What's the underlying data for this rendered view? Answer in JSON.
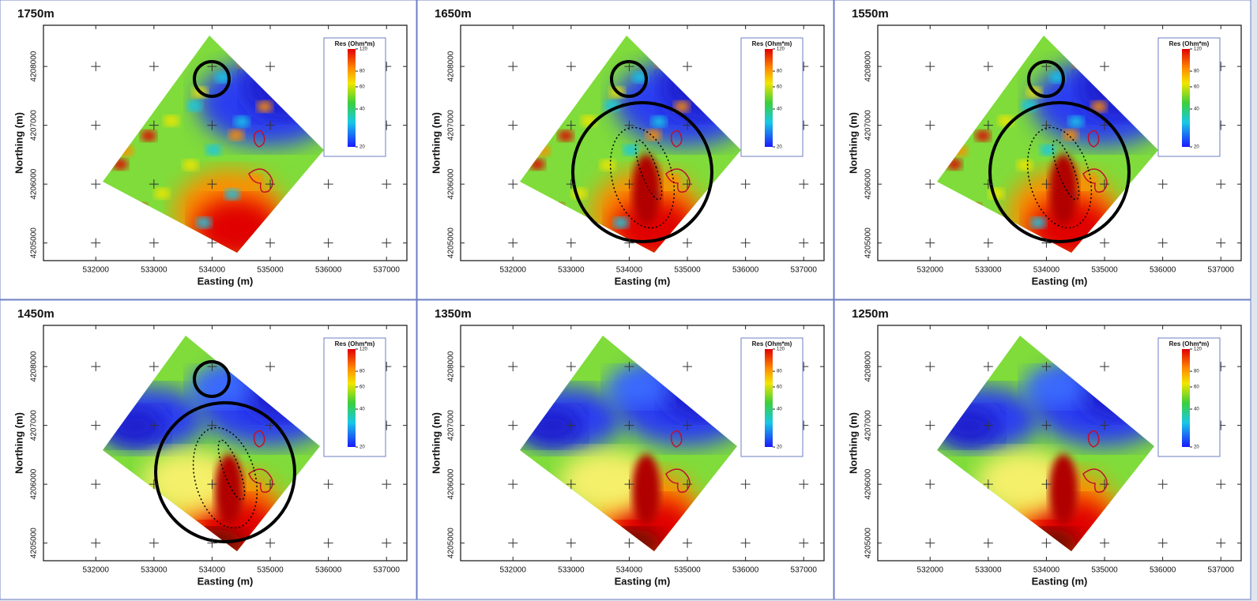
{
  "panels": [
    {
      "title": "1750m"
    },
    {
      "title": "1650m"
    },
    {
      "title": "1550m"
    },
    {
      "title": "1450m"
    },
    {
      "title": "1350m"
    },
    {
      "title": "1250m"
    }
  ],
  "axes": {
    "xlabel": "Easting (m)",
    "ylabel": "Northing (m)",
    "xlim": [
      531100,
      537350
    ],
    "ylim": [
      4204700,
      4208700
    ],
    "xticks": [
      532000,
      533000,
      534000,
      535000,
      536000,
      537000
    ],
    "yticks": [
      4205000,
      4206000,
      4207000,
      4208000
    ],
    "legend_title": "Res (Ohm*m)",
    "legend_ticks": [
      120,
      80,
      60,
      40,
      20
    ],
    "legend_scale": "log"
  }
}
